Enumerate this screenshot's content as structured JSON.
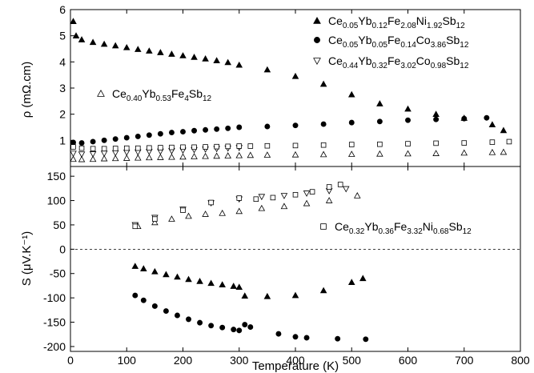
{
  "chart_data": [
    {
      "type": "scatter",
      "panel": "top",
      "ylabel": "ρ  (mΩ.cm)",
      "xlim": [
        0,
        800
      ],
      "ylim": [
        0,
        6
      ],
      "y_ticks": [
        1,
        2,
        3,
        4,
        5,
        6
      ],
      "series": [
        {
          "name": "Ce0.05Yb0.12Fe2.08Ni1.92Sb12",
          "marker": "triangle-up-filled",
          "x": [
            5,
            10,
            20,
            40,
            60,
            80,
            100,
            120,
            140,
            160,
            180,
            200,
            220,
            240,
            260,
            280,
            300,
            350,
            400,
            450,
            500,
            550,
            600,
            650,
            700,
            750,
            770
          ],
          "y": [
            5.55,
            5.0,
            4.85,
            4.75,
            4.68,
            4.62,
            4.55,
            4.48,
            4.42,
            4.36,
            4.3,
            4.24,
            4.18,
            4.12,
            4.05,
            3.98,
            3.88,
            3.7,
            3.45,
            3.15,
            2.75,
            2.4,
            2.2,
            2.0,
            1.85,
            1.6,
            1.38
          ]
        },
        {
          "name": "Ce0.05Yb0.05Fe0.14Co3.86Sb12",
          "marker": "circle-filled",
          "x": [
            5,
            20,
            40,
            60,
            80,
            100,
            120,
            140,
            160,
            180,
            200,
            220,
            240,
            260,
            280,
            300,
            350,
            400,
            450,
            500,
            550,
            600,
            650,
            700,
            740
          ],
          "y": [
            0.92,
            0.9,
            0.95,
            1.0,
            1.05,
            1.1,
            1.15,
            1.2,
            1.25,
            1.3,
            1.33,
            1.37,
            1.4,
            1.43,
            1.46,
            1.5,
            1.53,
            1.57,
            1.62,
            1.68,
            1.72,
            1.77,
            1.8,
            1.83,
            1.86
          ]
        },
        {
          "name": "Ce0.44Yb0.32Fe3.02Co0.98Sb12",
          "marker": "triangle-down-open",
          "x": [
            5,
            20,
            40,
            60,
            80,
            100,
            120,
            140,
            160,
            180,
            200,
            220,
            240,
            260,
            280,
            300
          ],
          "y": [
            0.5,
            0.47,
            0.48,
            0.5,
            0.52,
            0.54,
            0.55,
            0.57,
            0.58,
            0.6,
            0.62,
            0.64,
            0.66,
            0.68,
            0.7,
            0.72
          ]
        },
        {
          "name": "Ce0.40Yb0.53Fe4Sb12",
          "marker": "triangle-up-open",
          "x": [
            5,
            20,
            40,
            60,
            80,
            100,
            120,
            140,
            160,
            180,
            200,
            220,
            240,
            260,
            280,
            300,
            320,
            350,
            400,
            450,
            500,
            550,
            600,
            650,
            700,
            750,
            770
          ],
          "y": [
            0.28,
            0.27,
            0.28,
            0.3,
            0.31,
            0.32,
            0.33,
            0.34,
            0.35,
            0.36,
            0.37,
            0.38,
            0.39,
            0.4,
            0.41,
            0.42,
            0.43,
            0.44,
            0.45,
            0.46,
            0.47,
            0.48,
            0.49,
            0.5,
            0.52,
            0.54,
            0.55
          ]
        },
        {
          "name": "Ce0.32Yb0.36Fe3.32Ni0.68Sb12",
          "marker": "square-open",
          "x": [
            5,
            20,
            40,
            60,
            80,
            100,
            120,
            140,
            160,
            180,
            200,
            220,
            240,
            260,
            280,
            300,
            320,
            350,
            400,
            450,
            500,
            550,
            600,
            650,
            700,
            750,
            780
          ],
          "y": [
            0.75,
            0.7,
            0.68,
            0.68,
            0.69,
            0.7,
            0.7,
            0.71,
            0.72,
            0.73,
            0.74,
            0.74,
            0.75,
            0.76,
            0.77,
            0.78,
            0.78,
            0.79,
            0.8,
            0.82,
            0.84,
            0.85,
            0.87,
            0.89,
            0.9,
            0.93,
            0.95
          ]
        }
      ]
    },
    {
      "type": "scatter",
      "panel": "bottom",
      "xlabel": "Temperature (K)",
      "ylabel": "S  (μV.K⁻¹)",
      "xlim": [
        0,
        800
      ],
      "ylim": [
        -210,
        170
      ],
      "x_ticks": [
        0,
        100,
        200,
        300,
        400,
        500,
        600,
        700,
        800
      ],
      "y_ticks": [
        -200,
        -150,
        -100,
        -50,
        0,
        50,
        100,
        150
      ],
      "zero_line": true,
      "series": [
        {
          "name": "Ce0.05Yb0.12Fe2.08Ni1.92Sb12",
          "marker": "triangle-up-filled",
          "x": [
            115,
            130,
            150,
            170,
            190,
            210,
            230,
            250,
            270,
            290,
            300,
            310,
            350,
            400,
            450,
            500,
            520
          ],
          "y": [
            -35,
            -40,
            -46,
            -52,
            -57,
            -62,
            -66,
            -70,
            -73,
            -76,
            -78,
            -96,
            -97,
            -95,
            -85,
            -68,
            -60
          ]
        },
        {
          "name": "Ce0.05Yb0.05Fe0.14Co3.86Sb12",
          "marker": "circle-filled",
          "x": [
            115,
            130,
            150,
            170,
            190,
            210,
            230,
            250,
            270,
            290,
            300,
            310,
            320,
            370,
            400,
            420,
            475,
            525
          ],
          "y": [
            -95,
            -105,
            -117,
            -127,
            -136,
            -144,
            -151,
            -157,
            -161,
            -165,
            -167,
            -155,
            -160,
            -174,
            -180,
            -182,
            -184,
            -185
          ]
        },
        {
          "name": "Ce0.44Yb0.32Fe3.02Co0.98Sb12",
          "marker": "triangle-down-open",
          "x": [
            115,
            150,
            200,
            250,
            300,
            340,
            380,
            420,
            460,
            490
          ],
          "y": [
            50,
            65,
            82,
            95,
            103,
            108,
            110,
            115,
            120,
            124
          ]
        },
        {
          "name": "Ce0.40Yb0.53Fe4Sb12",
          "marker": "triangle-up-open",
          "x": [
            120,
            150,
            180,
            210,
            240,
            270,
            300,
            340,
            380,
            420,
            460,
            510
          ],
          "y": [
            47,
            55,
            62,
            68,
            72,
            74,
            78,
            84,
            88,
            94,
            100,
            110
          ]
        },
        {
          "name": "Ce0.32Yb0.36Fe3.32Ni0.68Sb12",
          "marker": "square-open",
          "x": [
            115,
            150,
            200,
            250,
            300,
            330,
            360,
            400,
            430,
            460,
            480
          ],
          "y": [
            47,
            62,
            80,
            96,
            105,
            103,
            106,
            112,
            118,
            128,
            133
          ]
        }
      ]
    }
  ],
  "legend": [
    {
      "marker": "triangle-up-filled",
      "base": "Ce",
      "parts": [
        [
          "0.05",
          "Yb"
        ],
        [
          "0.12",
          "Fe"
        ],
        [
          "2.08",
          "Ni"
        ],
        [
          "1.92",
          "Sb"
        ],
        [
          "12",
          ""
        ]
      ]
    },
    {
      "marker": "circle-filled",
      "base": "Ce",
      "parts": [
        [
          "0.05",
          "Yb"
        ],
        [
          "0.05",
          "Fe"
        ],
        [
          "0.14",
          "Co"
        ],
        [
          "3.86",
          "Sb"
        ],
        [
          "12",
          ""
        ]
      ]
    },
    {
      "marker": "triangle-down-open",
      "base": "Ce",
      "parts": [
        [
          "0.44",
          "Yb"
        ],
        [
          "0.32",
          "Fe"
        ],
        [
          "3.02",
          "Co"
        ],
        [
          "0.98",
          "Sb"
        ],
        [
          "12",
          ""
        ]
      ]
    },
    {
      "marker": "triangle-up-open",
      "base": "Ce",
      "parts": [
        [
          "0.40",
          "Yb"
        ],
        [
          "0.53",
          "Fe"
        ],
        [
          "4",
          "Sb"
        ],
        [
          "12",
          ""
        ]
      ]
    },
    {
      "marker": "square-open",
      "base": "Ce",
      "parts": [
        [
          "0.32",
          "Yb"
        ],
        [
          "0.36",
          "Fe"
        ],
        [
          "3.32",
          "Ni"
        ],
        [
          "0.68",
          "Sb"
        ],
        [
          "12",
          ""
        ]
      ]
    }
  ],
  "colors": {
    "ink": "#000000",
    "background": "#ffffff"
  }
}
